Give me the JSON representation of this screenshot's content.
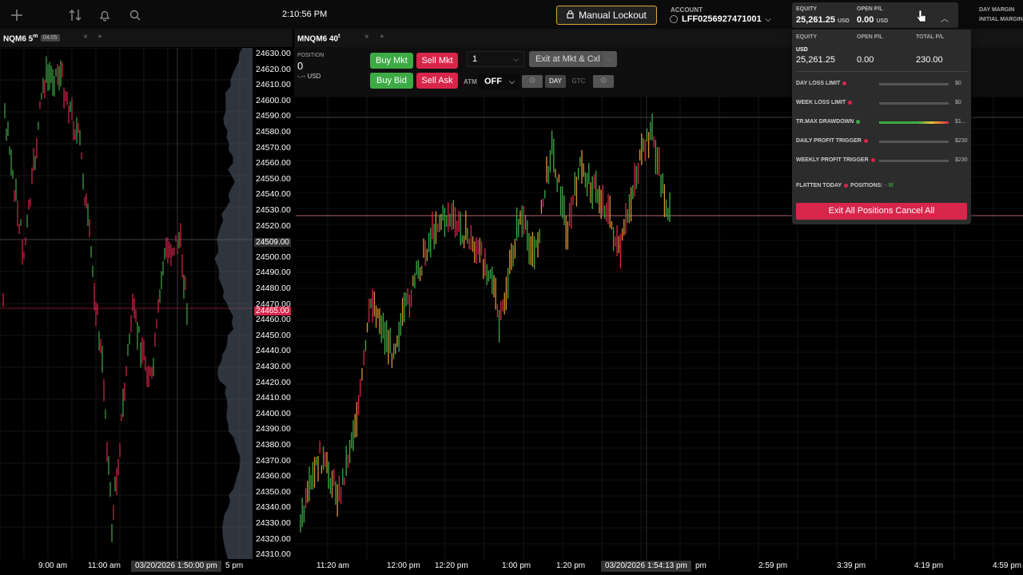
{
  "topbar": {
    "clock": "2:10:56 PM",
    "lockout_label": "Manual Lockout",
    "account_label": "ACCOUNT",
    "account_id": "LFF0256927471001",
    "equity_label": "EQUITY",
    "equity_value": "25,261.25",
    "equity_currency": "USD",
    "openpl_label": "OPEN P/L",
    "openpl_value": "0.00",
    "openpl_currency": "USD",
    "day_margin_label": "DAY MARGIN",
    "initial_margin_label": "INITIAL MARGIN"
  },
  "left_chart": {
    "title": "NQM6 5",
    "title_sup": "m",
    "badge": "04:05",
    "price_ticks": [
      "24630.00",
      "24620.00",
      "24610.00",
      "24600.00",
      "24590.00",
      "24580.00",
      "24570.00",
      "24560.00",
      "24550.00",
      "24540.00",
      "24530.00",
      "24520.00",
      "24509.00",
      "24500.00",
      "24490.00",
      "24480.00",
      "24470.00",
      "24465.00",
      "24460.00",
      "24450.00",
      "24440.00",
      "24430.00",
      "24420.00",
      "24410.00",
      "24400.00",
      "24390.00",
      "24380.00",
      "24370.00",
      "24360.00",
      "24350.00",
      "24340.00",
      "24330.00",
      "24320.00",
      "24310.00"
    ],
    "highlight_price": "24509.00",
    "last_price": "24465.00",
    "time_ticks": [
      "9:00 am",
      "11:00 am",
      "5 pm"
    ],
    "crosshair_time": "03/20/2026 1:50:00 pm"
  },
  "right_chart": {
    "title": "MNQM6 40",
    "title_sup": "t",
    "position_label": "POSITION",
    "position_value": "0",
    "position_usd": "-.-- USD",
    "buy_mkt": "Buy Mkt",
    "sell_mkt": "Sell Mkt",
    "buy_bid": "Buy Bid",
    "sell_ask": "Sell Ask",
    "qty": "1",
    "exit_label": "Exit at Mkt & Cxl",
    "atm_label": "ATM",
    "atm_value": "OFF",
    "tif_day": "DAY",
    "tif_gtc": "GTC",
    "time_ticks": [
      "11:20 am",
      "12:00 pm",
      "12:20 pm",
      "1:00 pm",
      "1:20 pm",
      "pm",
      "2:59 pm",
      "3:39 pm",
      "4:19 pm",
      "4:59 pm"
    ],
    "crosshair_time": "03/20/2026 1:54:13 pm"
  },
  "dropdown": {
    "equity_label": "EQUITY",
    "openpl_label": "OPEN P/L",
    "total_label": "TOTAL P/L",
    "currency": "USD",
    "equity_value": "25,261.25",
    "openpl_value": "0.00",
    "total_value": "230.00",
    "rows": [
      {
        "label": "DAY LOSS LIMIT",
        "amount": "$0",
        "dot": "#d8264b"
      },
      {
        "label": "WEEK LOSS LIMIT",
        "amount": "$0",
        "dot": "#d8264b"
      },
      {
        "label": "TR.MAX DRAWDOWN",
        "amount": "$1...",
        "dot": "#3daa45"
      },
      {
        "label": "DAILY PROFIT TRIGGER",
        "amount": "$230",
        "dot": "#d8264b"
      },
      {
        "label": "WEEKLY PROFIT TRIGGER",
        "amount": "$230",
        "dot": "#d8264b"
      }
    ],
    "flatten_label": "FLATTEN TODAY",
    "positions_label": "POSITIONS:",
    "positions_value": "- 0/",
    "exit_all": "Exit All Positions Cancel All"
  },
  "icons": [
    "plus-icon",
    "transfer-icon",
    "bell-icon",
    "search-icon",
    "lock-icon",
    "chevron-down-icon",
    "chevron-up-icon",
    "gear-icon"
  ],
  "colors": {
    "up": "#3daa45",
    "down": "#d8264b",
    "accent": "#e5a23a"
  }
}
